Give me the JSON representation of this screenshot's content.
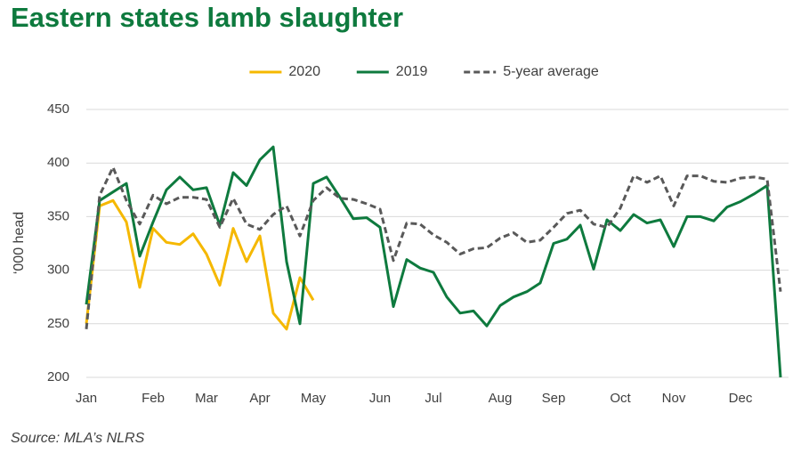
{
  "chart_data": {
    "type": "line",
    "title": "Eastern states lamb slaughter",
    "y_label": "‘000 head",
    "source": "Source: MLA’s NLRS",
    "categories": [
      "Jan",
      null,
      null,
      null,
      null,
      "Feb",
      null,
      null,
      null,
      "Mar",
      null,
      null,
      null,
      "Apr",
      null,
      null,
      null,
      "May",
      null,
      null,
      null,
      null,
      "Jun",
      null,
      null,
      null,
      "Jul",
      null,
      null,
      null,
      null,
      "Aug",
      null,
      null,
      null,
      "Sep",
      null,
      null,
      null,
      null,
      "Oct",
      null,
      null,
      null,
      "Nov",
      null,
      null,
      null,
      null,
      "Dec",
      null,
      null,
      null
    ],
    "series": [
      {
        "name": "2020",
        "color": "#f5b800",
        "linestyle": "solid",
        "values": [
          250,
          360,
          365,
          345,
          284,
          339,
          326,
          324,
          334,
          315,
          286,
          339,
          308,
          332,
          260,
          245,
          293,
          272,
          null,
          null,
          null,
          null,
          null,
          null,
          null,
          null,
          null,
          null,
          null,
          null,
          null,
          null,
          null,
          null,
          null,
          null,
          null,
          null,
          null,
          null,
          null,
          null,
          null,
          null,
          null,
          null,
          null,
          null,
          null,
          null,
          null,
          null,
          null
        ]
      },
      {
        "name": "2019",
        "color": "#0e7a3e",
        "linestyle": "solid",
        "values": [
          268,
          365,
          373,
          381,
          313,
          345,
          375,
          387,
          375,
          377,
          342,
          391,
          379,
          403,
          415,
          308,
          250,
          381,
          387,
          368,
          348,
          349,
          340,
          266,
          310,
          302,
          298,
          275,
          260,
          262,
          248,
          267,
          275,
          280,
          288,
          325,
          329,
          342,
          301,
          347,
          337,
          352,
          344,
          347,
          322,
          350,
          350,
          346,
          359,
          364,
          371,
          379,
          200
        ]
      },
      {
        "name": "5-year average",
        "color": "#595959",
        "linestyle": "dashed",
        "values": [
          245,
          370,
          396,
          365,
          343,
          370,
          362,
          368,
          368,
          366,
          340,
          367,
          343,
          338,
          352,
          360,
          332,
          365,
          377,
          367,
          366,
          362,
          357,
          309,
          344,
          343,
          333,
          326,
          315,
          320,
          321,
          330,
          335,
          326,
          328,
          340,
          353,
          356,
          343,
          340,
          358,
          388,
          382,
          388,
          360,
          388,
          388,
          383,
          382,
          386,
          387,
          385,
          280
        ]
      }
    ],
    "ylim": [
      200,
      450
    ],
    "yticks": [
      200,
      250,
      300,
      350,
      400,
      450
    ],
    "grid": true,
    "legend": "top"
  }
}
